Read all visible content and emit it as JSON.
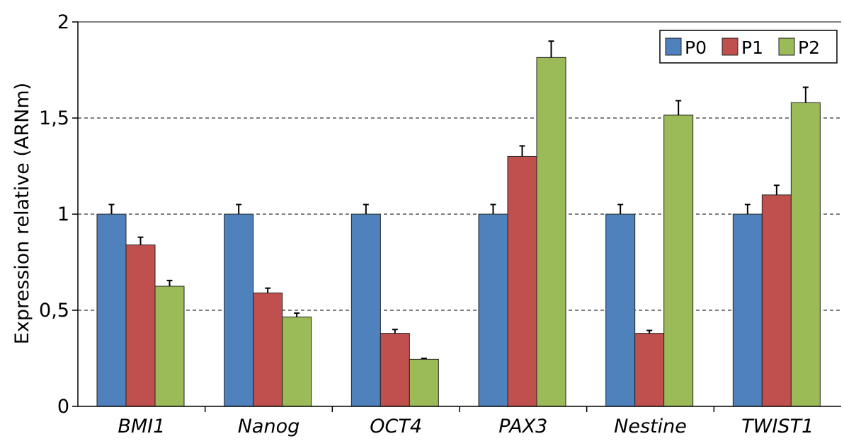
{
  "chart_data": {
    "type": "bar",
    "title": "",
    "xlabel": "",
    "ylabel": "Expression relative (ARNm)",
    "ylim": [
      0,
      2
    ],
    "yticks": [
      0,
      0.5,
      1,
      1.5,
      2
    ],
    "ytick_labels": [
      "0",
      "0,5",
      "1",
      "1,5",
      "2"
    ],
    "grid": "horizontal dashed at 0,5 / 1 / 1,5",
    "legend_position": "top-right",
    "categories": [
      "BMI1",
      "Nanog",
      "OCT4",
      "PAX3",
      "Nestine",
      "TWIST1"
    ],
    "series": [
      {
        "name": "P0",
        "color": "#4f81bd",
        "values": [
          1.0,
          1.0,
          1.0,
          1.0,
          1.0,
          1.0
        ],
        "errors": [
          0.05,
          0.05,
          0.05,
          0.05,
          0.05,
          0.05
        ]
      },
      {
        "name": "P1",
        "color": "#c0504d",
        "values": [
          0.84,
          0.59,
          0.38,
          1.3,
          0.38,
          1.1
        ],
        "errors": [
          0.04,
          0.025,
          0.02,
          0.055,
          0.015,
          0.05
        ]
      },
      {
        "name": "P2",
        "color": "#9bbb59",
        "values": [
          0.625,
          0.465,
          0.245,
          1.815,
          1.515,
          1.58
        ],
        "errors": [
          0.03,
          0.02,
          0.005,
          0.085,
          0.075,
          0.08
        ]
      }
    ]
  }
}
